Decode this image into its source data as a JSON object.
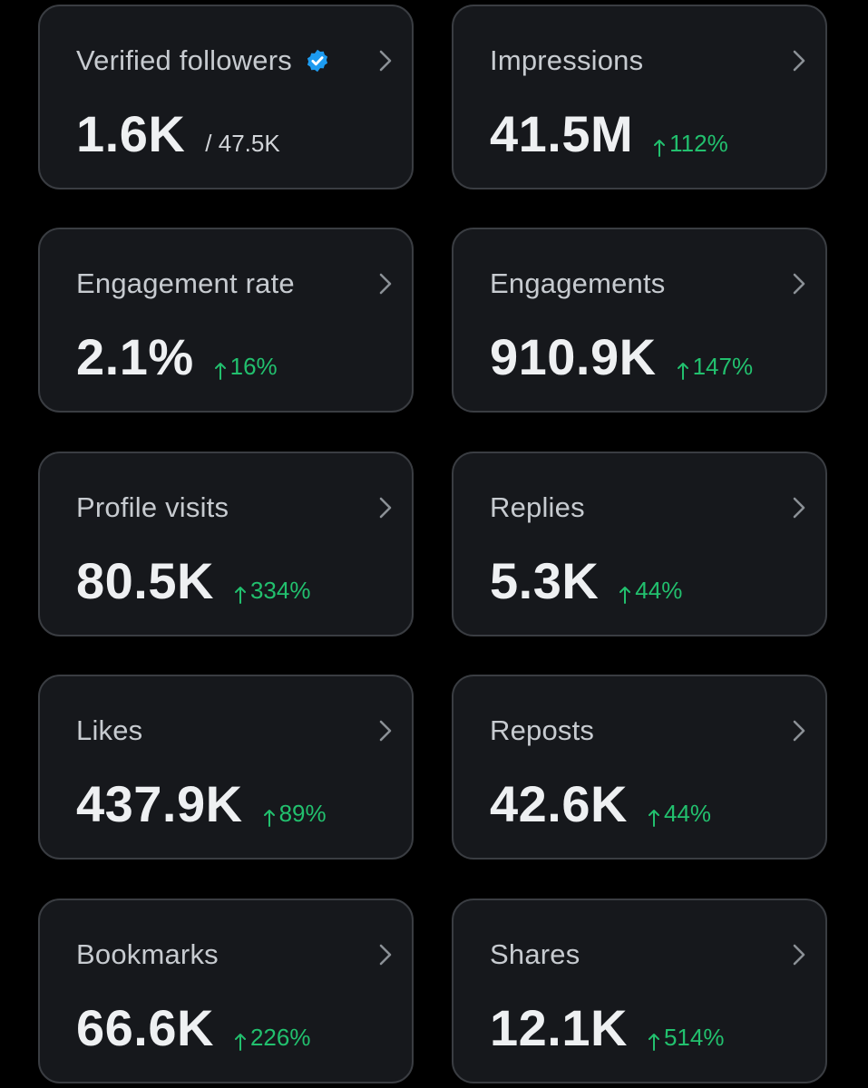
{
  "colors": {
    "background": "#000000",
    "card": "#16181c",
    "card_border": "#3a3d42",
    "title": "#c7cbd0",
    "value": "#eef0f2",
    "positive": "#22c06e",
    "verified": "#1d9bf0"
  },
  "cards": [
    {
      "title": "Verified followers",
      "icon": "verified-badge-icon",
      "value": "1.6K",
      "total": "/ 47.5K"
    },
    {
      "title": "Impressions",
      "value": "41.5M",
      "change": "112%"
    },
    {
      "title": "Engagement rate",
      "value": "2.1%",
      "change": "16%"
    },
    {
      "title": "Engagements",
      "value": "910.9K",
      "change": "147%"
    },
    {
      "title": "Profile visits",
      "value": "80.5K",
      "change": "334%"
    },
    {
      "title": "Replies",
      "value": "5.3K",
      "change": "44%"
    },
    {
      "title": "Likes",
      "value": "437.9K",
      "change": "89%"
    },
    {
      "title": "Reposts",
      "value": "42.6K",
      "change": "44%"
    },
    {
      "title": "Bookmarks",
      "value": "66.6K",
      "change": "226%"
    },
    {
      "title": "Shares",
      "value": "12.1K",
      "change": "514%"
    }
  ]
}
